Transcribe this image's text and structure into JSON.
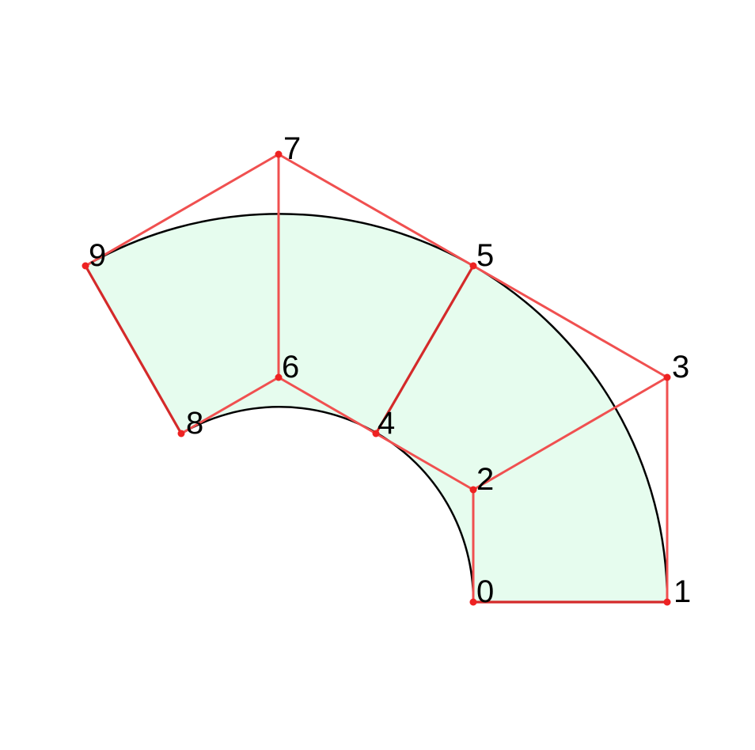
{
  "diagram": {
    "colors": {
      "region_fill": "#e6fcee",
      "arc_stroke": "#000000",
      "mesh_edge": "#f05050",
      "mesh_edge_strong": "#d42a2a",
      "node": "#ee2222",
      "label": "#000000"
    },
    "nodes": [
      {
        "id": "0",
        "label": "0"
      },
      {
        "id": "1",
        "label": "1"
      },
      {
        "id": "2",
        "label": "2"
      },
      {
        "id": "3",
        "label": "3"
      },
      {
        "id": "4",
        "label": "4"
      },
      {
        "id": "5",
        "label": "5"
      },
      {
        "id": "6",
        "label": "6"
      },
      {
        "id": "7",
        "label": "7"
      },
      {
        "id": "8",
        "label": "8"
      },
      {
        "id": "9",
        "label": "9"
      }
    ],
    "edges": [
      {
        "from": "0",
        "to": "1",
        "kind": "boundary"
      },
      {
        "from": "0",
        "to": "2",
        "kind": "control"
      },
      {
        "from": "1",
        "to": "3",
        "kind": "control"
      },
      {
        "from": "2",
        "to": "3",
        "kind": "control"
      },
      {
        "from": "2",
        "to": "4",
        "kind": "control"
      },
      {
        "from": "3",
        "to": "5",
        "kind": "control"
      },
      {
        "from": "4",
        "to": "5",
        "kind": "boundary"
      },
      {
        "from": "4",
        "to": "6",
        "kind": "control"
      },
      {
        "from": "5",
        "to": "7",
        "kind": "control"
      },
      {
        "from": "6",
        "to": "7",
        "kind": "control"
      },
      {
        "from": "6",
        "to": "8",
        "kind": "control"
      },
      {
        "from": "7",
        "to": "9",
        "kind": "control"
      },
      {
        "from": "8",
        "to": "9",
        "kind": "boundary"
      }
    ]
  }
}
